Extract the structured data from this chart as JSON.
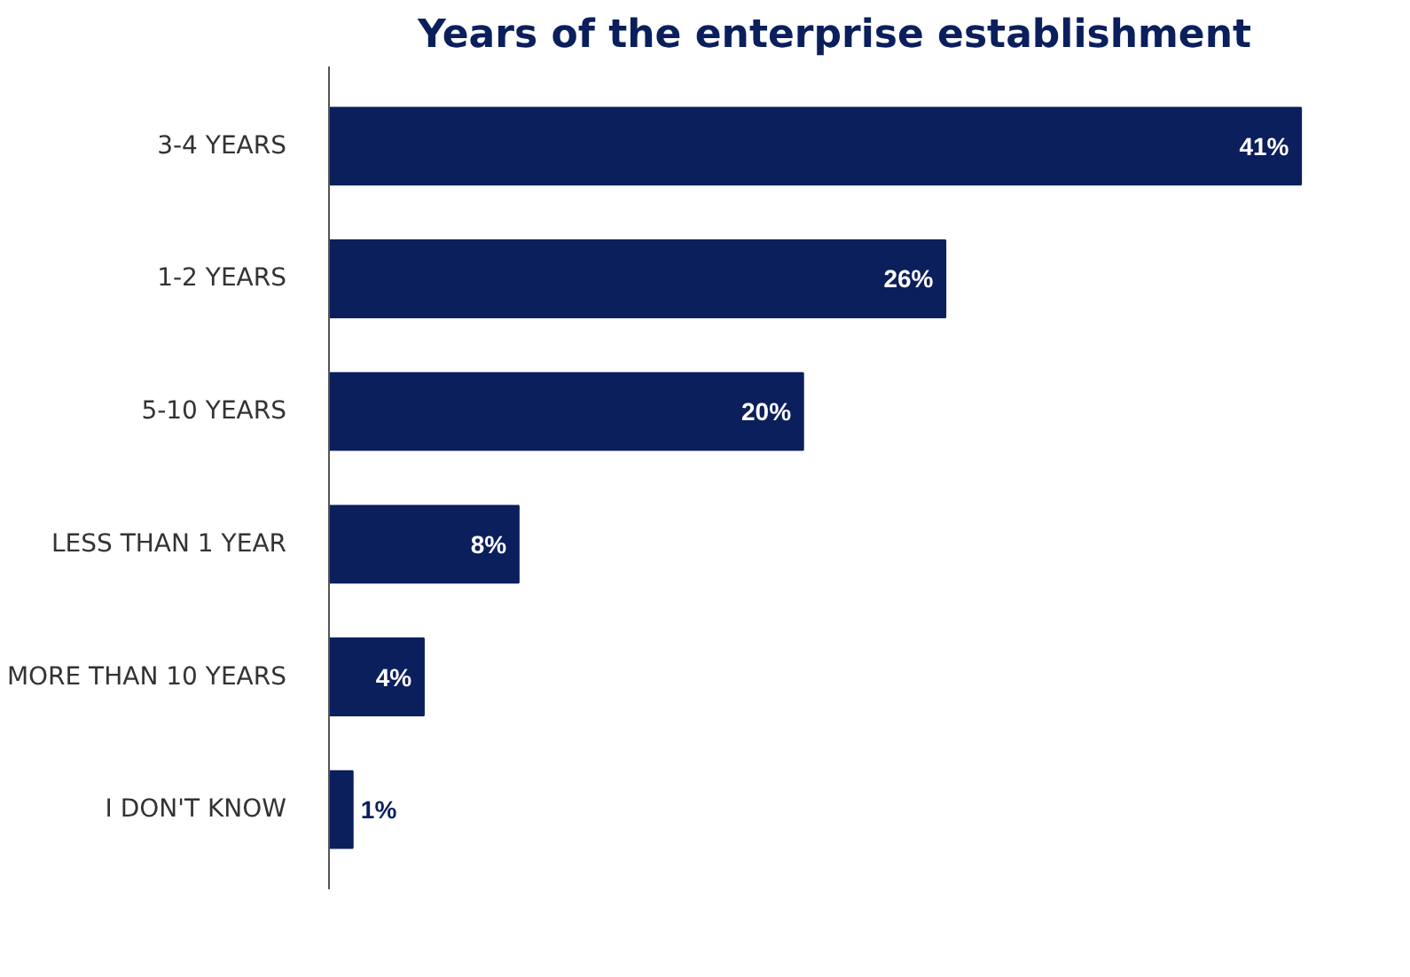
{
  "chart_data": {
    "type": "bar",
    "orientation": "horizontal",
    "title": "Years of the enterprise establishment",
    "categories": [
      "3-4 YEARS",
      "1-2 YEARS",
      "5-10 YEARS",
      "LESS THAN 1 YEAR",
      "MORE THAN 10 YEARS",
      "I DON'T KNOW"
    ],
    "values": [
      41,
      26,
      20,
      8,
      4,
      1
    ],
    "value_labels": [
      "41%",
      "26%",
      "20%",
      "8%",
      "4%",
      "1%"
    ],
    "color": "#0b1f5c",
    "grid": false
  }
}
